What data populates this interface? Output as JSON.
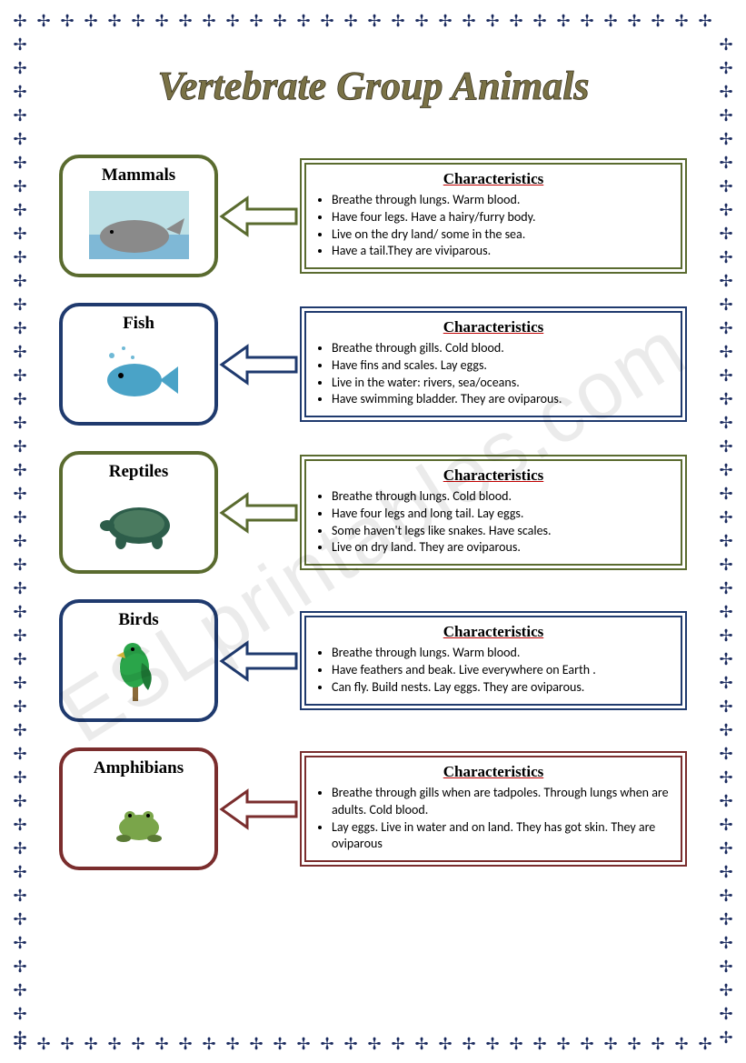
{
  "title": "Vertebrate Group Animals",
  "char_heading": "Characteristics",
  "watermark": "ESLprintables.com",
  "border_glyph": "✢",
  "border_color": "#1a2a5e",
  "title_color": "#7a7246",
  "groups": [
    {
      "name": "Mammals",
      "card_border": "#5a6b2f",
      "box_border": "#5a6b2f",
      "arrow_border": "#5a6b2f",
      "arrow_fill": "#ffffff",
      "items": [
        "Breathe  through lungs. Warm blood.",
        "Have four legs. Have a hairy/furry body.",
        "Live on the dry land/ some in the sea.",
        "Have a tail.They are viviparous."
      ]
    },
    {
      "name": "Fish",
      "card_border": "#1f3a6e",
      "box_border": "#1f3a6e",
      "arrow_border": "#1f3a6e",
      "arrow_fill": "#ffffff",
      "items": [
        "Breathe through gills. Cold blood.",
        "Have fins and scales. Lay eggs.",
        "Live in the water: rivers, sea/oceans.",
        "Have swimming bladder. They are oviparous."
      ]
    },
    {
      "name": "Reptiles",
      "card_border": "#5a6b2f",
      "box_border": "#5a6b2f",
      "arrow_border": "#5a6b2f",
      "arrow_fill": "#ffffff",
      "items": [
        "Breathe through lungs. Cold blood.",
        "Have four legs and long tail. Lay eggs.",
        "Some haven't legs like snakes. Have scales.",
        "Live on dry land. They are oviparous."
      ]
    },
    {
      "name": "Birds",
      "card_border": "#1f3a6e",
      "box_border": "#1f3a6e",
      "arrow_border": "#1f3a6e",
      "arrow_fill": "#ffffff",
      "items": [
        "Breathe through lungs. Warm blood.",
        "Have feathers and beak. Live everywhere on Earth .",
        "Can fly. Build nests. Lay eggs. They are oviparous."
      ]
    },
    {
      "name": "Amphibians",
      "card_border": "#7a2d2d",
      "box_border": "#7a2d2d",
      "arrow_border": "#7a2d2d",
      "arrow_fill": "#ffffff",
      "items": [
        "Breathe through gills when are tadpoles. Through lungs when are adults. Cold blood.",
        "Lay eggs. Live in water and on land. They has got skin. They are oviparous"
      ]
    }
  ],
  "animal_svgs": {
    "Mammals": "whale",
    "Fish": "fish",
    "Reptiles": "turtle",
    "Birds": "parrot",
    "Amphibians": "frog"
  }
}
